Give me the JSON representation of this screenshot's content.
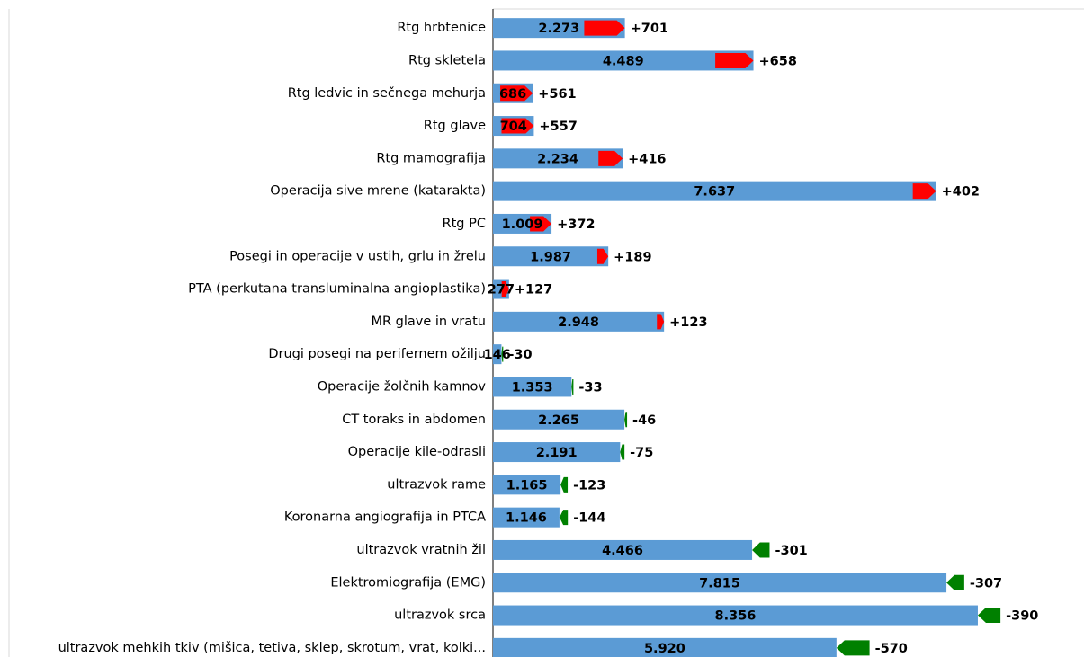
{
  "chart_data": {
    "type": "bar-change",
    "categories": [
      "Rtg hrbtenice",
      "Rtg skletela",
      "Rtg ledvic in sečnega mehurja",
      "Rtg glave",
      "Rtg mamografija",
      "Operacija sive mrene (katarakta)",
      "Rtg PC",
      "Posegi in operacije v ustih, grlu in žrelu",
      "PTA (perkutana transluminalna angioplastika)",
      "MR glave in vratu",
      "Drugi posegi na perifernem ožilju",
      "Operacije žolčnih kamnov",
      "CT toraks in abdomen",
      "Operacije kile-odrasli",
      "ultrazvok rame",
      "Koronarna angiografija in PTCA",
      "ultrazvok vratnih žil",
      "Elektromiografija (EMG)",
      "ultrazvok srca",
      "ultrazvok mehkih tkiv (mišica, tetiva, sklep, skrotum, vrat, kolki..."
    ],
    "values": [
      2273,
      4489,
      686,
      704,
      2234,
      7637,
      1009,
      1987,
      277,
      2948,
      146,
      1353,
      2265,
      2191,
      1165,
      1146,
      4466,
      7815,
      8356,
      5920
    ],
    "value_labels": [
      "2.273",
      "4.489",
      "686",
      "704",
      "2.234",
      "7.637",
      "1.009",
      "1.987",
      "277",
      "2.948",
      "146",
      "1.353",
      "2.265",
      "2.191",
      "1.165",
      "1.146",
      "4.466",
      "7.815",
      "8.356",
      "5.920"
    ],
    "changes": [
      701,
      658,
      561,
      557,
      416,
      402,
      372,
      189,
      127,
      123,
      -30,
      -33,
      -46,
      -75,
      -123,
      -144,
      -301,
      -307,
      -390,
      -570
    ],
    "change_labels": [
      "+701",
      "+658",
      "+561",
      "+557",
      "+416",
      "+402",
      "+372",
      "+189",
      "+127",
      "+123",
      "-30",
      "-33",
      "-46",
      "-75",
      "-123",
      "-144",
      "-301",
      "-307",
      "-390",
      "-570"
    ],
    "color": "#5b9bd5",
    "increase_color": "#ff0000",
    "decrease_color": "#008000",
    "xlim": [
      0,
      10000
    ]
  }
}
